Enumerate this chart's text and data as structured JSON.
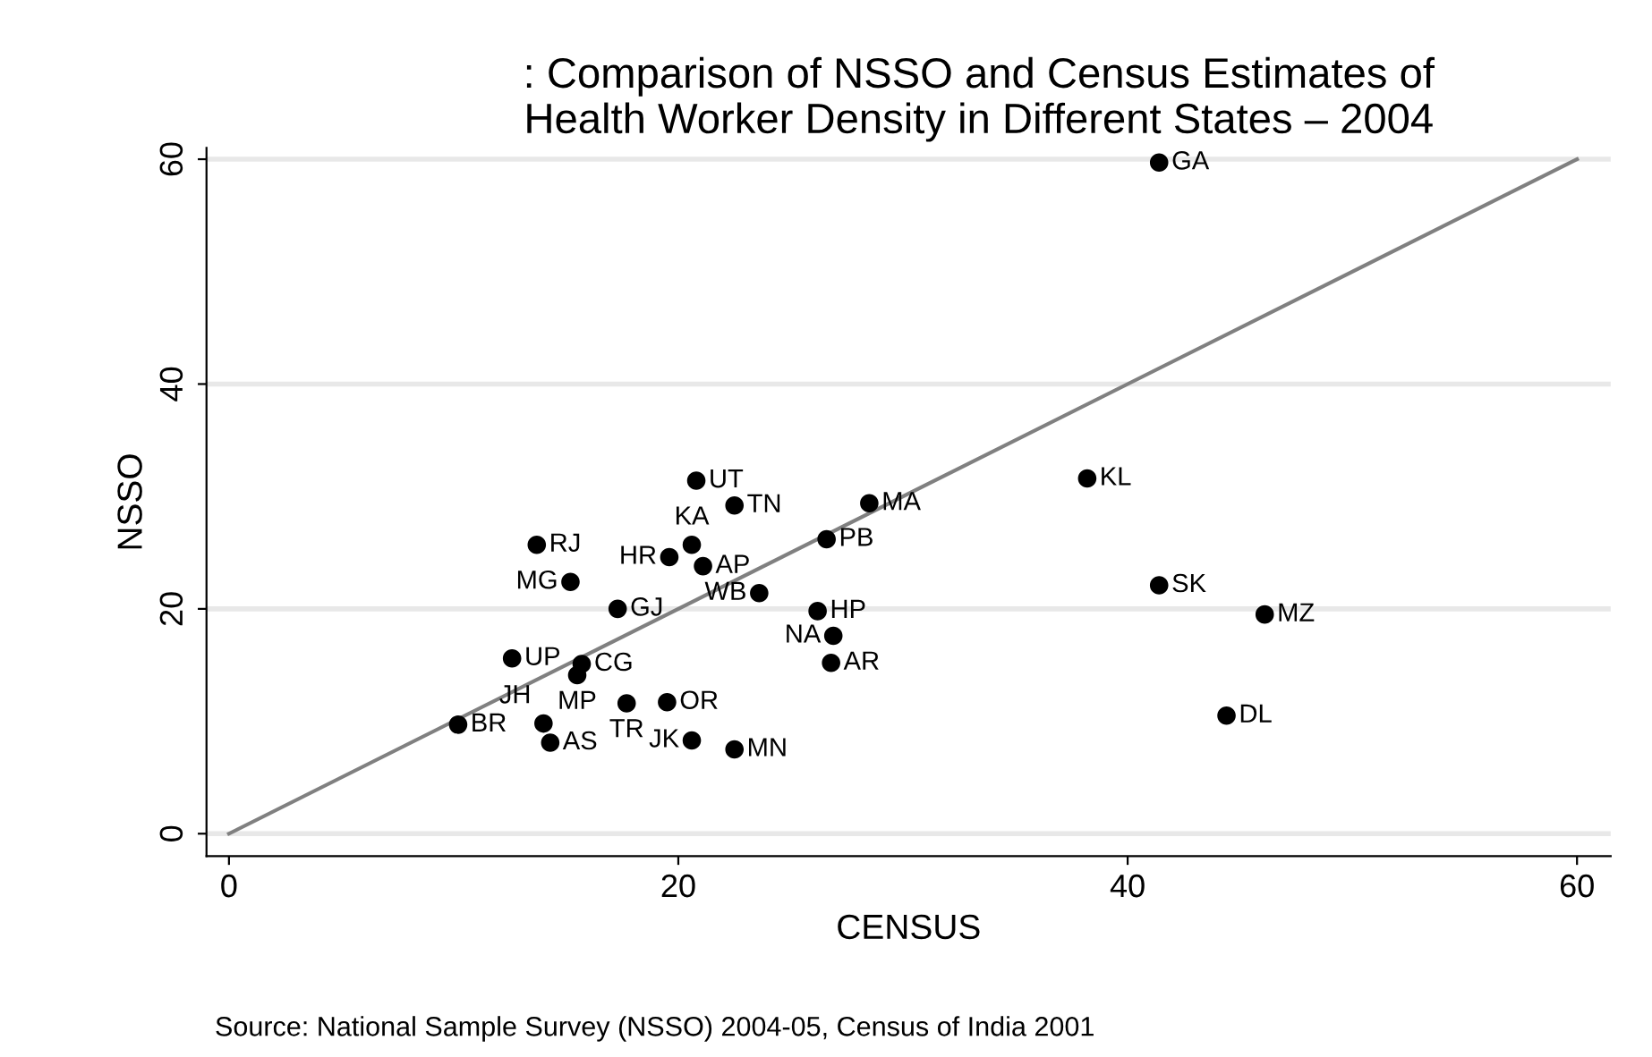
{
  "chart_data": {
    "type": "scatter",
    "title": ": Comparison of NSSO and Census Estimates of\nHealth Worker Density in Different States – 2004",
    "xlabel": "CENSUS",
    "ylabel": "NSSO",
    "x": [
      41.4,
      38.2,
      41.4,
      46.1,
      44.4,
      20.8,
      22.5,
      28.5,
      26.6,
      13.7,
      20.6,
      19.6,
      21.1,
      23.6,
      26.2,
      26.9,
      26.8,
      15.2,
      17.3,
      12.6,
      15.7,
      15.5,
      17.7,
      19.5,
      10.2,
      14.0,
      14.3,
      20.6,
      22.5
    ],
    "series": [
      {
        "color": "#000000",
        "marker": "circle",
        "values": [
          59.7,
          31.6,
          22.1,
          19.5,
          10.5,
          31.4,
          29.2,
          29.4,
          26.2,
          25.7,
          25.7,
          24.6,
          23.8,
          21.4,
          19.8,
          17.6,
          15.2,
          22.4,
          20.0,
          15.6,
          15.1,
          14.1,
          11.6,
          11.7,
          9.7,
          9.8,
          8.1,
          8.3,
          7.5
        ]
      },
      {
        "type": "line",
        "color": "#808080",
        "marker": "none",
        "x": [
          0,
          60
        ],
        "values": [
          0,
          60
        ]
      }
    ],
    "annotations": [
      {
        "text": "GA",
        "x": 41.4,
        "y": 59.7
      },
      {
        "text": "KL",
        "x": 38.2,
        "y": 31.6
      },
      {
        "text": "SK",
        "x": 41.4,
        "y": 22.1
      },
      {
        "text": "MZ",
        "x": 46.1,
        "y": 19.5
      },
      {
        "text": "DL",
        "x": 44.4,
        "y": 10.5
      },
      {
        "text": "UT",
        "x": 20.8,
        "y": 31.4
      },
      {
        "text": "TN",
        "x": 22.5,
        "y": 29.2
      },
      {
        "text": "MA",
        "x": 28.5,
        "y": 29.4
      },
      {
        "text": "PB",
        "x": 26.6,
        "y": 26.2
      },
      {
        "text": "RJ",
        "x": 13.7,
        "y": 25.7
      },
      {
        "text": "KA",
        "x": 20.6,
        "y": 25.7
      },
      {
        "text": "HR",
        "x": 19.6,
        "y": 24.6
      },
      {
        "text": "AP",
        "x": 21.1,
        "y": 23.8
      },
      {
        "text": "WB",
        "x": 23.6,
        "y": 21.4
      },
      {
        "text": "HP",
        "x": 26.2,
        "y": 19.8
      },
      {
        "text": "NA",
        "x": 26.9,
        "y": 17.6
      },
      {
        "text": "AR",
        "x": 26.8,
        "y": 15.2
      },
      {
        "text": "MG",
        "x": 15.2,
        "y": 22.4
      },
      {
        "text": "GJ",
        "x": 17.3,
        "y": 20.0
      },
      {
        "text": "UP",
        "x": 12.6,
        "y": 15.6
      },
      {
        "text": "CG",
        "x": 15.7,
        "y": 15.1
      },
      {
        "text": "MP",
        "x": 15.5,
        "y": 14.1
      },
      {
        "text": "TR",
        "x": 17.7,
        "y": 11.6
      },
      {
        "text": "OR",
        "x": 19.5,
        "y": 11.7
      },
      {
        "text": "BR",
        "x": 10.2,
        "y": 9.7
      },
      {
        "text": "JH",
        "x": 14.0,
        "y": 9.8
      },
      {
        "text": "AS",
        "x": 14.3,
        "y": 8.1
      },
      {
        "text": "JK",
        "x": 20.6,
        "y": 8.3
      },
      {
        "text": "MN",
        "x": 22.5,
        "y": 7.5
      },
      "Source: National Sample Survey (NSSO) 2004-05, Census of India 2001"
    ],
    "xlim": [
      -1,
      61.5
    ],
    "ylim": [
      -2,
      61
    ],
    "xticks": [
      0,
      20,
      40,
      60
    ],
    "yticks": [
      0,
      20,
      40,
      60
    ],
    "grid": "y"
  }
}
